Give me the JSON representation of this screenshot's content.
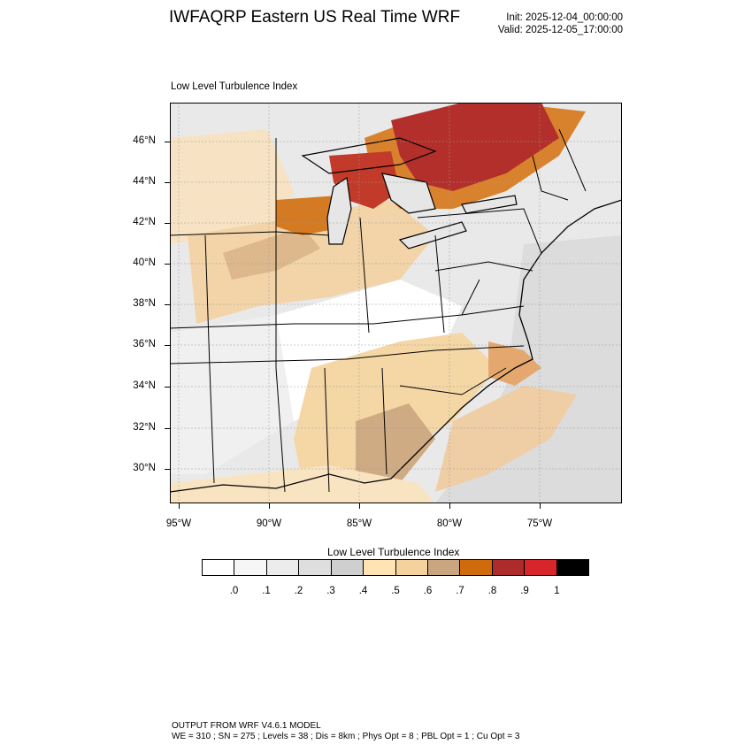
{
  "header": {
    "title": "IWFAQRP Eastern US Real Time WRF",
    "init": "Init: 2025-12-04_00:00:00",
    "valid": "Valid: 2025-12-05_17:00:00"
  },
  "map": {
    "field_title": "Low Level Turbulence Index",
    "projection": "lambert-conformal",
    "region": "Eastern United States",
    "lat_labels": [
      "46°N",
      "44°N",
      "42°N",
      "40°N",
      "38°N",
      "36°N",
      "34°N",
      "32°N",
      "30°N"
    ],
    "lon_labels": [
      "95°W",
      "90°W",
      "85°W",
      "80°W",
      "75°W"
    ],
    "features": [
      "state-boundaries",
      "county-boundaries",
      "coastlines",
      "great-lakes"
    ]
  },
  "colorbar": {
    "title": "Low Level Turbulence Index",
    "labels": [
      ".0",
      ".1",
      ".2",
      ".3",
      ".4",
      ".5",
      ".6",
      ".7",
      ".8",
      ".9",
      "1"
    ],
    "colors": [
      "#ffffff",
      "#f6f6f6",
      "#ececec",
      "#dedede",
      "#cfcfcf",
      "#ffe3b3",
      "#f5d19e",
      "#caa680",
      "#cf6a0d",
      "#ad2b2a",
      "#d7252b",
      "#000000"
    ]
  },
  "footer": {
    "line1": "OUTPUT FROM WRF V4.6.1 MODEL",
    "line2": "WE = 310 ; SN = 275 ; Levels = 38 ; Dis = 8km ; Phys Opt = 8 ; PBL Opt = 1 ; Cu Opt = 3"
  }
}
